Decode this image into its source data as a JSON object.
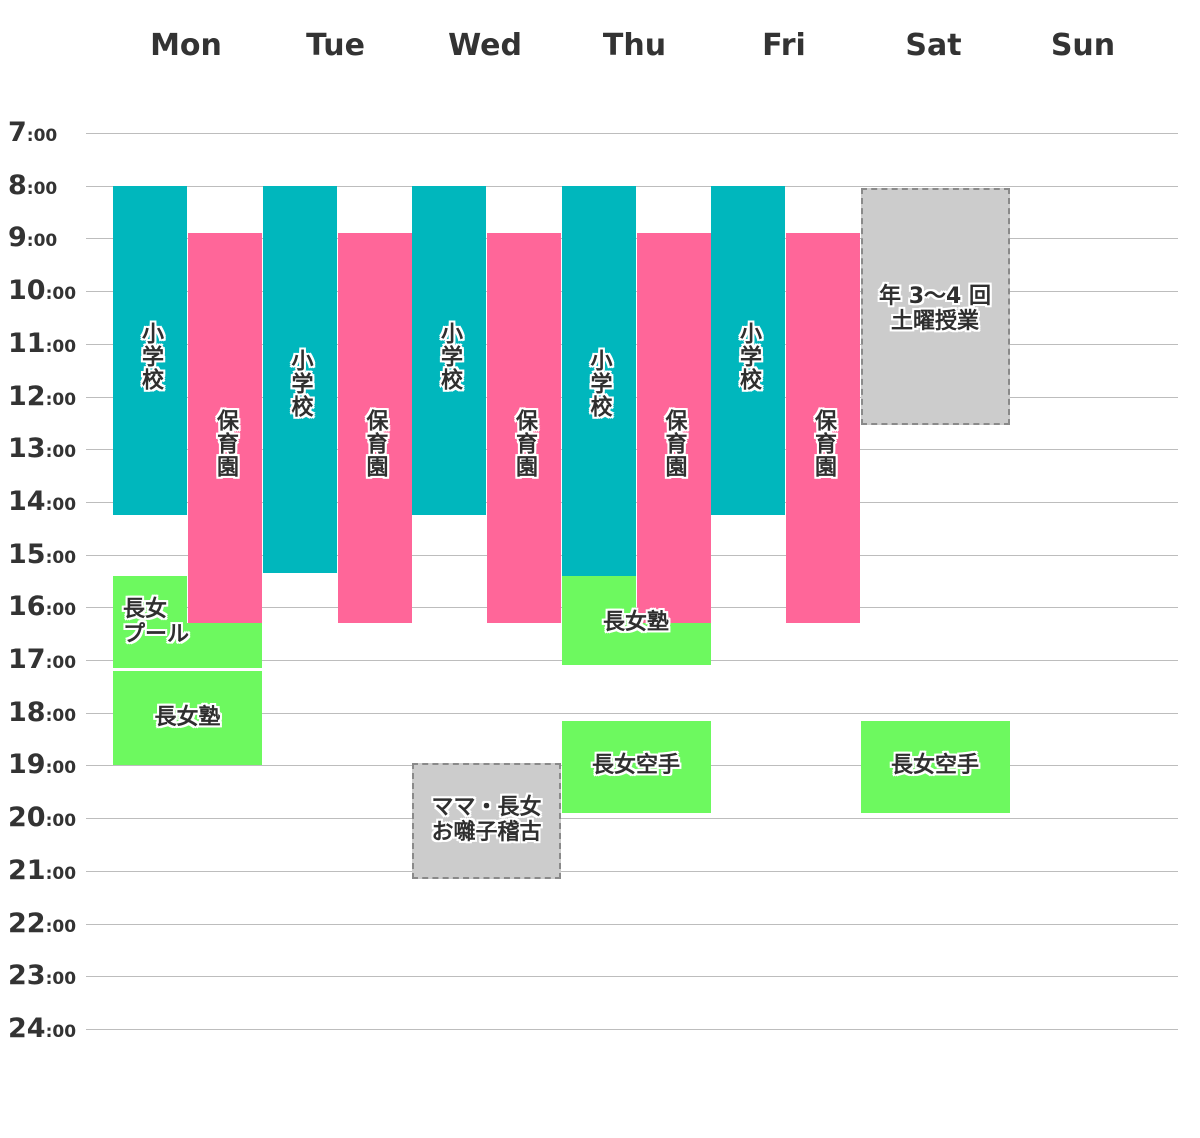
{
  "days": [
    "Mon",
    "Tue",
    "Wed",
    "Thu",
    "Fri",
    "Sat",
    "Sun"
  ],
  "hours": [
    {
      "h": "7",
      "m": ":00"
    },
    {
      "h": "8",
      "m": ":00"
    },
    {
      "h": "9",
      "m": ":00"
    },
    {
      "h": "10",
      "m": ":00"
    },
    {
      "h": "11",
      "m": ":00"
    },
    {
      "h": "12",
      "m": ":00"
    },
    {
      "h": "13",
      "m": ":00"
    },
    {
      "h": "14",
      "m": ":00"
    },
    {
      "h": "15",
      "m": ":00"
    },
    {
      "h": "16",
      "m": ":00"
    },
    {
      "h": "17",
      "m": ":00"
    },
    {
      "h": "18",
      "m": ":00"
    },
    {
      "h": "19",
      "m": ":00"
    },
    {
      "h": "20",
      "m": ":00"
    },
    {
      "h": "21",
      "m": ":00"
    },
    {
      "h": "22",
      "m": ":00"
    },
    {
      "h": "23",
      "m": ":00"
    },
    {
      "h": "24",
      "m": ":00"
    }
  ],
  "colors": {
    "school": "#00b7bd",
    "nursery": "#ff6699",
    "activity": "#6df95f",
    "other": "#cccccc"
  },
  "events": [
    {
      "day": 0,
      "lane": "left",
      "start": 8,
      "end": 14.25,
      "kind": "school",
      "text": "小学校",
      "vertical": true,
      "label_center": 11.25
    },
    {
      "day": 0,
      "lane": "right",
      "start": 8.9,
      "end": 16.3,
      "kind": "nursery",
      "text": "保育園",
      "vertical": true,
      "label_center": 12.9
    },
    {
      "day": 0,
      "lane": "full",
      "start": 16.3,
      "end": 17.15,
      "kind": "activity",
      "text": "",
      "vertical": false
    },
    {
      "day": 0,
      "lane": "left",
      "start": 15.4,
      "end": 16.3,
      "kind": "activity",
      "text": "",
      "vertical": false
    },
    {
      "day": 0,
      "lane": "full",
      "start": 17.2,
      "end": 19.0,
      "kind": "activity",
      "text": "長女塾",
      "vertical": false
    },
    {
      "day": 1,
      "lane": "left",
      "start": 8,
      "end": 15.35,
      "kind": "school",
      "text": "小学校",
      "vertical": true,
      "label_center": 11.75
    },
    {
      "day": 1,
      "lane": "right",
      "start": 8.9,
      "end": 16.3,
      "kind": "nursery",
      "text": "保育園",
      "vertical": true,
      "label_center": 12.9
    },
    {
      "day": 2,
      "lane": "left",
      "start": 8,
      "end": 14.25,
      "kind": "school",
      "text": "小学校",
      "vertical": true,
      "label_center": 11.25
    },
    {
      "day": 2,
      "lane": "right",
      "start": 8.9,
      "end": 16.3,
      "kind": "nursery",
      "text": "保育園",
      "vertical": true,
      "label_center": 12.9
    },
    {
      "day": 2,
      "lane": "full",
      "start": 18.95,
      "end": 21.15,
      "kind": "other",
      "text": "ママ・長女\nお囃子稽古",
      "vertical": false,
      "dashed": true
    },
    {
      "day": 3,
      "lane": "left",
      "start": 8,
      "end": 15.4,
      "kind": "school",
      "text": "小学校",
      "vertical": true,
      "label_center": 11.75
    },
    {
      "day": 3,
      "lane": "right",
      "start": 8.9,
      "end": 16.3,
      "kind": "nursery",
      "text": "保育園",
      "vertical": true,
      "label_center": 12.9
    },
    {
      "day": 3,
      "lane": "left",
      "start": 15.4,
      "end": 17.1,
      "kind": "activity",
      "text": "",
      "vertical": false
    },
    {
      "day": 3,
      "lane": "full",
      "start": 16.3,
      "end": 17.1,
      "kind": "activity",
      "text": "長女塾",
      "vertical": false,
      "label_center": 16.3
    },
    {
      "day": 3,
      "lane": "full",
      "start": 18.15,
      "end": 19.9,
      "kind": "activity",
      "text": "長女空手",
      "vertical": false
    },
    {
      "day": 4,
      "lane": "left",
      "start": 8,
      "end": 14.25,
      "kind": "school",
      "text": "小学校",
      "vertical": true,
      "label_center": 11.25
    },
    {
      "day": 4,
      "lane": "right",
      "start": 8.9,
      "end": 16.3,
      "kind": "nursery",
      "text": "保育園",
      "vertical": true,
      "label_center": 12.9
    },
    {
      "day": 5,
      "lane": "full",
      "start": 8.05,
      "end": 12.55,
      "kind": "other",
      "text": "年 3～4 回\n土曜授業",
      "vertical": false,
      "dashed": true,
      "label_center": 10.35
    },
    {
      "day": 5,
      "lane": "full",
      "start": 18.15,
      "end": 19.9,
      "kind": "activity",
      "text": "長女空手",
      "vertical": false
    }
  ],
  "overlay_labels": [
    {
      "day": 0,
      "text": "長女\nプール",
      "center": 16.3,
      "align": "left"
    }
  ]
}
